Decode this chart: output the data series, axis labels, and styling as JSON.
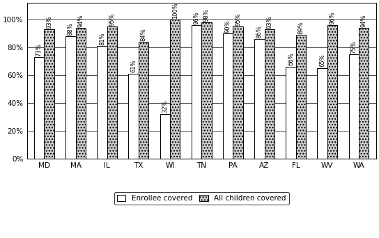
{
  "categories": [
    "MD",
    "MA",
    "IL",
    "TX",
    "WI",
    "TN",
    "PA",
    "AZ",
    "FL",
    "WV",
    "WA"
  ],
  "enrollee": [
    73,
    88,
    81,
    61,
    32,
    96,
    90,
    86,
    66,
    65,
    75
  ],
  "children": [
    93,
    94,
    95,
    84,
    100,
    98,
    95,
    93,
    89,
    96,
    94
  ],
  "enrollee_color": "#ffffff",
  "children_color": "#aaaaaa",
  "bar_width": 0.32,
  "ylim": [
    0,
    112
  ],
  "yticks": [
    0,
    20,
    40,
    60,
    80,
    100
  ],
  "yticklabels": [
    "0%",
    "20%",
    "40%",
    "60%",
    "80%",
    "100%"
  ],
  "legend_enrollee": "Enrollee covered",
  "legend_children": "All children covered",
  "label_fontsize": 6.0,
  "tick_fontsize": 7.5,
  "legend_fontsize": 7.5
}
